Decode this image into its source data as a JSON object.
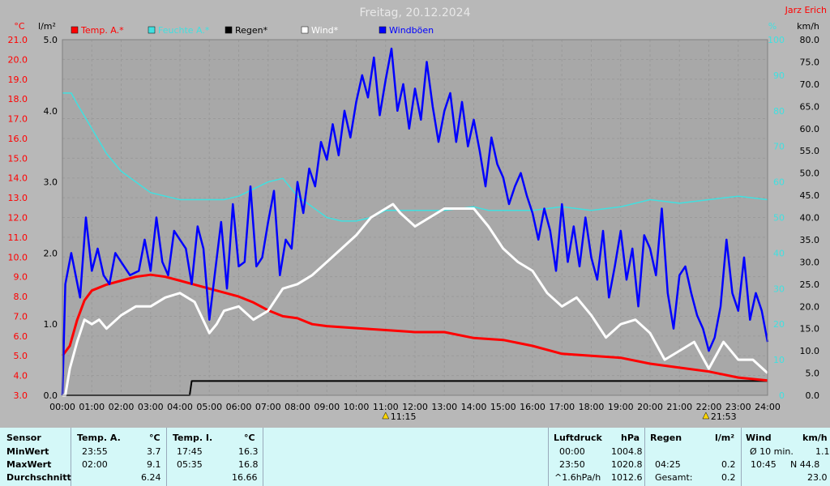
{
  "chart_data": {
    "type": "line",
    "title": "Freitag, 20.12.2024",
    "author": "Jarz Erich",
    "axes": {
      "temp": {
        "unit": "°C",
        "min": 3.0,
        "max": 21.0,
        "step": 1.0,
        "color": "#ff0000"
      },
      "rain": {
        "unit": "l/m²",
        "min": 0.0,
        "max": 5.0,
        "step": 1.0,
        "color": "#000000"
      },
      "humidity": {
        "unit": "%",
        "min": 0,
        "max": 100,
        "step": 10,
        "color": "#40e0e0"
      },
      "wind": {
        "unit": "km/h",
        "min": 0.0,
        "max": 80.0,
        "step": 5.0,
        "color": "#000000"
      }
    },
    "x": {
      "unit": "h",
      "min": 0,
      "max": 24,
      "ticks": [
        "00:00",
        "01:00",
        "02:00",
        "03:00",
        "04:00",
        "05:00",
        "06:00",
        "07:00",
        "08:00",
        "09:00",
        "10:00",
        "11:00",
        "12:00",
        "13:00",
        "14:00",
        "15:00",
        "16:00",
        "17:00",
        "18:00",
        "19:00",
        "20:00",
        "21:00",
        "22:00",
        "23:00",
        "24:00"
      ]
    },
    "legend": [
      "Temp. A.*",
      "Feuchte A.*",
      "Regen*",
      "Wind*",
      "Windböen"
    ],
    "markers": [
      {
        "label": "11:15",
        "hour": 11.0
      },
      {
        "label": "21:53",
        "hour": 21.9
      }
    ],
    "series": [
      {
        "name": "Temp. A.*",
        "axis": "temp",
        "color": "#ff0000",
        "points": [
          [
            0,
            5.0
          ],
          [
            0.25,
            5.5
          ],
          [
            0.5,
            6.8
          ],
          [
            0.75,
            7.8
          ],
          [
            1,
            8.3
          ],
          [
            1.5,
            8.6
          ],
          [
            2,
            8.8
          ],
          [
            2.5,
            9.0
          ],
          [
            3,
            9.1
          ],
          [
            3.5,
            9.0
          ],
          [
            4,
            8.8
          ],
          [
            4.5,
            8.6
          ],
          [
            5,
            8.4
          ],
          [
            5.5,
            8.2
          ],
          [
            6,
            8.0
          ],
          [
            6.5,
            7.7
          ],
          [
            7,
            7.3
          ],
          [
            7.5,
            7.0
          ],
          [
            8,
            6.9
          ],
          [
            8.5,
            6.6
          ],
          [
            9,
            6.5
          ],
          [
            10,
            6.4
          ],
          [
            11,
            6.3
          ],
          [
            12,
            6.2
          ],
          [
            13,
            6.2
          ],
          [
            14,
            5.9
          ],
          [
            15,
            5.8
          ],
          [
            16,
            5.5
          ],
          [
            17,
            5.1
          ],
          [
            18,
            5.0
          ],
          [
            19,
            4.9
          ],
          [
            20,
            4.6
          ],
          [
            21,
            4.4
          ],
          [
            22,
            4.2
          ],
          [
            23,
            3.9
          ],
          [
            24,
            3.75
          ]
        ]
      },
      {
        "name": "Feuchte A.*",
        "axis": "humidity",
        "color": "#40e0e0",
        "points": [
          [
            0,
            85
          ],
          [
            0.3,
            85
          ],
          [
            0.5,
            82
          ],
          [
            1,
            75
          ],
          [
            1.5,
            68
          ],
          [
            2,
            63
          ],
          [
            2.5,
            60
          ],
          [
            3,
            57
          ],
          [
            3.5,
            56
          ],
          [
            4,
            55
          ],
          [
            5,
            55
          ],
          [
            5.5,
            55
          ],
          [
            6,
            56
          ],
          [
            6.5,
            58
          ],
          [
            7,
            60
          ],
          [
            7.5,
            61
          ],
          [
            8,
            56
          ],
          [
            8.5,
            53
          ],
          [
            9,
            50
          ],
          [
            9.5,
            49
          ],
          [
            10,
            49
          ],
          [
            10.5,
            50
          ],
          [
            11,
            52
          ],
          [
            12,
            52
          ],
          [
            13,
            52
          ],
          [
            14,
            53
          ],
          [
            14.5,
            52
          ],
          [
            15,
            52
          ],
          [
            16,
            52
          ],
          [
            17,
            53
          ],
          [
            18,
            52
          ],
          [
            19,
            53
          ],
          [
            20,
            55
          ],
          [
            21,
            54
          ],
          [
            22,
            55
          ],
          [
            23,
            56
          ],
          [
            24,
            55
          ]
        ]
      },
      {
        "name": "Regen*",
        "axis": "rain",
        "color": "#000000",
        "points": [
          [
            0,
            0
          ],
          [
            4.33,
            0
          ],
          [
            4.4,
            0.2
          ],
          [
            4.8,
            0.2
          ],
          [
            5.5,
            0.2
          ],
          [
            6,
            0.2
          ],
          [
            24,
            0.2
          ]
        ]
      },
      {
        "name": "Wind*",
        "axis": "wind",
        "color": "#ffffff",
        "points": [
          [
            0,
            0
          ],
          [
            0.1,
            0
          ],
          [
            0.25,
            6
          ],
          [
            0.5,
            12
          ],
          [
            0.75,
            17
          ],
          [
            1,
            16
          ],
          [
            1.25,
            17
          ],
          [
            1.5,
            15
          ],
          [
            2,
            18
          ],
          [
            2.5,
            20
          ],
          [
            3,
            20
          ],
          [
            3.5,
            22
          ],
          [
            4,
            23
          ],
          [
            4.5,
            21
          ],
          [
            5,
            14
          ],
          [
            5.25,
            16
          ],
          [
            5.5,
            19
          ],
          [
            6,
            20
          ],
          [
            6.5,
            17
          ],
          [
            7,
            19
          ],
          [
            7.5,
            24
          ],
          [
            8,
            25
          ],
          [
            8.5,
            27
          ],
          [
            9,
            30
          ],
          [
            9.5,
            33
          ],
          [
            10,
            36
          ],
          [
            10.5,
            40
          ],
          [
            11,
            42
          ],
          [
            11.25,
            43
          ],
          [
            11.5,
            41
          ],
          [
            12,
            38
          ],
          [
            12.5,
            40
          ],
          [
            13,
            42
          ],
          [
            13.5,
            42
          ],
          [
            14,
            42
          ],
          [
            14.5,
            38
          ],
          [
            15,
            33
          ],
          [
            15.5,
            30
          ],
          [
            16,
            28
          ],
          [
            16.5,
            23
          ],
          [
            17,
            20
          ],
          [
            17.5,
            22
          ],
          [
            18,
            18
          ],
          [
            18.5,
            13
          ],
          [
            19,
            16
          ],
          [
            19.5,
            17
          ],
          [
            20,
            14
          ],
          [
            20.5,
            8
          ],
          [
            21,
            10
          ],
          [
            21.5,
            12
          ],
          [
            22,
            6
          ],
          [
            22.5,
            12
          ],
          [
            23,
            8
          ],
          [
            23.5,
            8
          ],
          [
            24,
            5
          ]
        ]
      },
      {
        "name": "Windböen",
        "axis": "wind",
        "color": "#0000ff",
        "points": [
          [
            0,
            0
          ],
          [
            0.1,
            25
          ],
          [
            0.3,
            32
          ],
          [
            0.6,
            22
          ],
          [
            0.8,
            40
          ],
          [
            1,
            28
          ],
          [
            1.2,
            33
          ],
          [
            1.4,
            27
          ],
          [
            1.6,
            25
          ],
          [
            1.8,
            32
          ],
          [
            2,
            30
          ],
          [
            2.3,
            27
          ],
          [
            2.6,
            28
          ],
          [
            2.8,
            35
          ],
          [
            3,
            28
          ],
          [
            3.2,
            40
          ],
          [
            3.4,
            30
          ],
          [
            3.6,
            27
          ],
          [
            3.8,
            37
          ],
          [
            4,
            35
          ],
          [
            4.2,
            33
          ],
          [
            4.4,
            25
          ],
          [
            4.6,
            38
          ],
          [
            4.8,
            33
          ],
          [
            5,
            17
          ],
          [
            5.2,
            28
          ],
          [
            5.4,
            39
          ],
          [
            5.6,
            24
          ],
          [
            5.8,
            43
          ],
          [
            6,
            29
          ],
          [
            6.2,
            30
          ],
          [
            6.4,
            47
          ],
          [
            6.6,
            29
          ],
          [
            6.8,
            31
          ],
          [
            7,
            39
          ],
          [
            7.2,
            46
          ],
          [
            7.4,
            27
          ],
          [
            7.6,
            35
          ],
          [
            7.8,
            33
          ],
          [
            8,
            48
          ],
          [
            8.2,
            41
          ],
          [
            8.4,
            51
          ],
          [
            8.6,
            47
          ],
          [
            8.8,
            57
          ],
          [
            9,
            53
          ],
          [
            9.2,
            61
          ],
          [
            9.4,
            54
          ],
          [
            9.6,
            64
          ],
          [
            9.8,
            58
          ],
          [
            10,
            66
          ],
          [
            10.2,
            72
          ],
          [
            10.4,
            67
          ],
          [
            10.6,
            76
          ],
          [
            10.8,
            63
          ],
          [
            11,
            71
          ],
          [
            11.2,
            78
          ],
          [
            11.4,
            64
          ],
          [
            11.6,
            70
          ],
          [
            11.8,
            60
          ],
          [
            12,
            69
          ],
          [
            12.2,
            62
          ],
          [
            12.4,
            75
          ],
          [
            12.6,
            65
          ],
          [
            12.8,
            57
          ],
          [
            13,
            64
          ],
          [
            13.2,
            68
          ],
          [
            13.4,
            57
          ],
          [
            13.6,
            66
          ],
          [
            13.8,
            56
          ],
          [
            14,
            62
          ],
          [
            14.2,
            55
          ],
          [
            14.4,
            47
          ],
          [
            14.6,
            58
          ],
          [
            14.8,
            52
          ],
          [
            15,
            49
          ],
          [
            15.2,
            43
          ],
          [
            15.4,
            47
          ],
          [
            15.6,
            50
          ],
          [
            15.8,
            45
          ],
          [
            16,
            41
          ],
          [
            16.2,
            35
          ],
          [
            16.4,
            42
          ],
          [
            16.6,
            37
          ],
          [
            16.8,
            28
          ],
          [
            17,
            43
          ],
          [
            17.2,
            30
          ],
          [
            17.4,
            38
          ],
          [
            17.6,
            29
          ],
          [
            17.8,
            40
          ],
          [
            18,
            31
          ],
          [
            18.2,
            26
          ],
          [
            18.4,
            37
          ],
          [
            18.6,
            22
          ],
          [
            18.8,
            29
          ],
          [
            19,
            37
          ],
          [
            19.2,
            26
          ],
          [
            19.4,
            33
          ],
          [
            19.6,
            20
          ],
          [
            19.8,
            36
          ],
          [
            20,
            33
          ],
          [
            20.2,
            27
          ],
          [
            20.4,
            42
          ],
          [
            20.6,
            23
          ],
          [
            20.8,
            15
          ],
          [
            21,
            27
          ],
          [
            21.2,
            29
          ],
          [
            21.4,
            23
          ],
          [
            21.6,
            18
          ],
          [
            21.8,
            15
          ],
          [
            22,
            10
          ],
          [
            22.2,
            13
          ],
          [
            22.4,
            20
          ],
          [
            22.6,
            35
          ],
          [
            22.8,
            23
          ],
          [
            23,
            19
          ],
          [
            23.2,
            31
          ],
          [
            23.4,
            17
          ],
          [
            23.6,
            23
          ],
          [
            23.8,
            19
          ],
          [
            24,
            12
          ]
        ]
      }
    ]
  },
  "stats": {
    "sensor": {
      "header": "Sensor",
      "min": "MinWert",
      "max": "MaxWert",
      "avg": "Durchschnitt"
    },
    "temp_a": {
      "header": "Temp. A.",
      "unit": "°C",
      "min_time": "23:55",
      "min_val": "3.7",
      "max_time": "02:00",
      "max_val": "9.1",
      "avg": "6.24"
    },
    "temp_i": {
      "header": "Temp. I.",
      "unit": "°C",
      "min_time": "17:45",
      "min_val": "16.3",
      "max_time": "05:35",
      "max_val": "16.8",
      "avg": "16.66"
    },
    "pressure": {
      "header": "Luftdruck",
      "unit": "hPa",
      "min_time": "00:00",
      "min_val": "1004.8",
      "max_time": "23:50",
      "max_val": "1020.8",
      "trend": "^1.6hPa/h",
      "avg": "1012.6"
    },
    "rain": {
      "header": "Regen",
      "unit": "l/m²",
      "max_time": "04:25",
      "max_val": "0.2",
      "total_label": "Gesamt:",
      "total": "0.2"
    },
    "wind": {
      "header": "Wind",
      "unit": "km/h",
      "min_label": "Ø 10 min.",
      "min_val": "1.1",
      "max_time": "10:45",
      "max_val": "N 44.8",
      "avg": "23.0"
    }
  }
}
